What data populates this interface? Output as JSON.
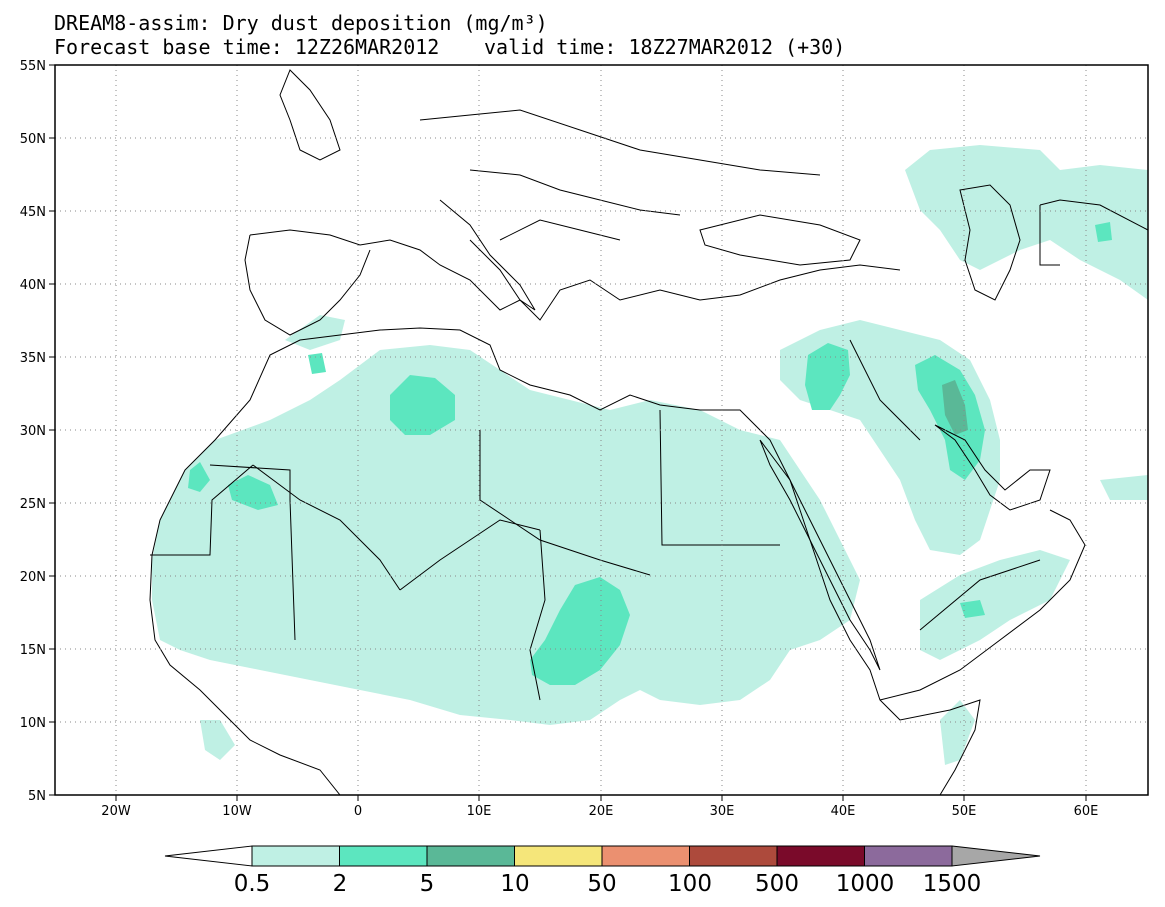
{
  "title": {
    "line1": "DREAM8-assim: Dry dust deposition (mg/m³)",
    "line2": "Forecast base time: 12Z26MAR2012",
    "line2b": "valid time: 18Z27MAR2012 (+30)"
  },
  "axes": {
    "lat_labels": [
      "55N",
      "50N",
      "45N",
      "40N",
      "35N",
      "30N",
      "25N",
      "20N",
      "15N",
      "10N",
      "5N"
    ],
    "lon_labels": [
      "20W",
      "10W",
      "0",
      "10E",
      "20E",
      "30E",
      "40E",
      "50E",
      "60E"
    ]
  },
  "colorbar": {
    "labels": [
      "0.5",
      "2",
      "5",
      "10",
      "50",
      "100",
      "500",
      "1000",
      "1500"
    ],
    "colors": [
      "#bff0e4",
      "#5ce6bf",
      "#5ab897",
      "#f5e67a",
      "#eb9070",
      "#ad4a3c",
      "#7a0a2a",
      "#8c6a9c",
      "#a7a7a7"
    ]
  },
  "chart_data": {
    "type": "heatmap",
    "variable": "Dry dust deposition",
    "units": "mg/m³",
    "lon_range": [
      -25,
      65
    ],
    "lat_range": [
      5,
      55
    ],
    "levels": [
      0.5,
      2,
      5,
      10,
      50,
      100,
      500,
      1000,
      1500
    ],
    "regions": [
      {
        "level": 0.5,
        "lon": 4,
        "lat": 28
      },
      {
        "level": 0.5,
        "lon": 19,
        "lat": 16
      },
      {
        "level": 0.5,
        "lon": 33,
        "lat": 17
      },
      {
        "level": 0.5,
        "lon": 48,
        "lat": 30
      },
      {
        "level": 0.5,
        "lon": 56,
        "lat": 44
      },
      {
        "level": 2,
        "lon": 5,
        "lat": 32
      },
      {
        "level": 2,
        "lon": 19,
        "lat": 15
      },
      {
        "level": 2,
        "lon": 48,
        "lat": 31
      },
      {
        "level": 2,
        "lon": 39,
        "lat": 33
      },
      {
        "level": 5,
        "lon": 49,
        "lat": 31
      }
    ]
  }
}
